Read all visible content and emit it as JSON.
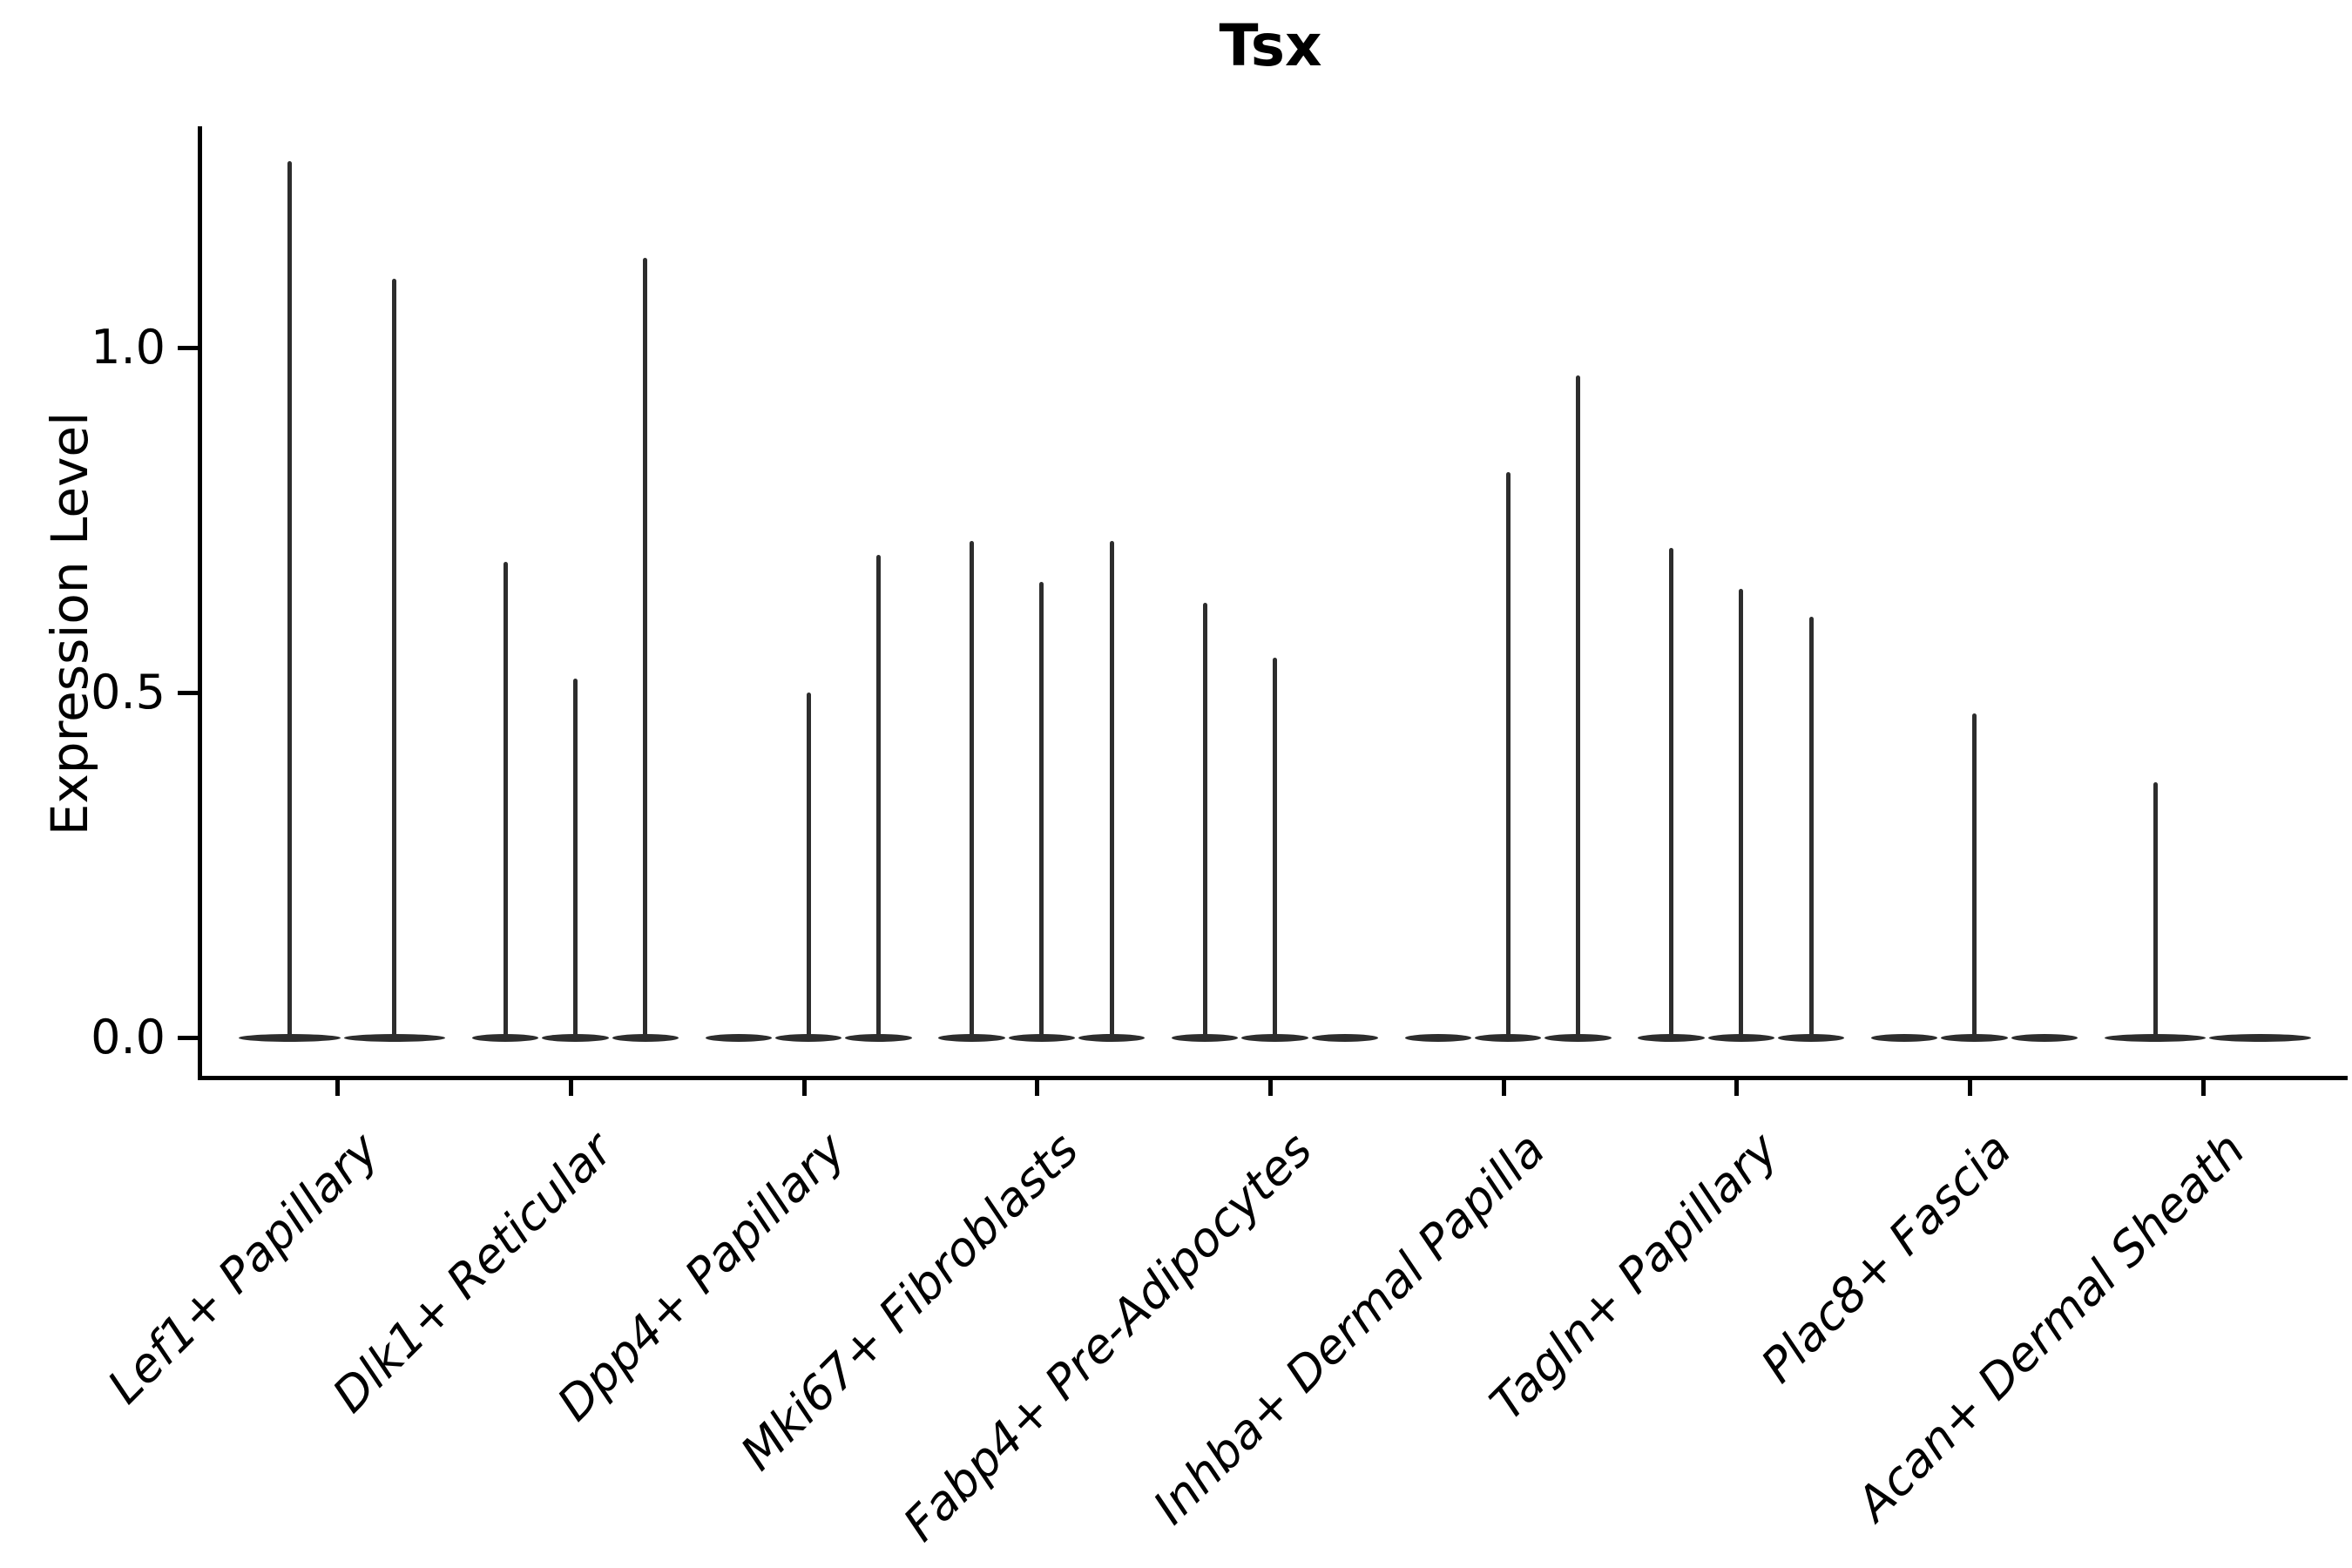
{
  "chart_data": {
    "type": "violin",
    "title": "Tsx",
    "xlabel": "",
    "ylabel": "Expression Level",
    "ylim": [
      0,
      1.32
    ],
    "yticks": [
      0.0,
      0.5,
      1.0
    ],
    "ytick_labels": [
      "0.0",
      "0.5",
      "1.0"
    ],
    "grid": "off",
    "legend": "none",
    "violin_color": "#2d2d2d",
    "axis_color": "#000000",
    "categories": [
      "Lef1+ Papillary",
      "Dlk1+ Reticular",
      "Dpp4+ Papillary",
      "Mki67+ Fibroblasts",
      "Fabp4+ Pre-Adipocytes",
      "Inhba+ Dermal Papilla",
      "Tagln+ Papillary",
      "Plac8+ Fascia",
      "Acan+ Dermal Sheath"
    ],
    "groups": [
      {
        "category": "Lef1+ Papillary",
        "violin_maxima": [
          1.27,
          1.1
        ]
      },
      {
        "category": "Dlk1+ Reticular",
        "violin_maxima": [
          0.69,
          0.52,
          1.13
        ]
      },
      {
        "category": "Dpp4+ Papillary",
        "violin_maxima": [
          0,
          0.5,
          0.7
        ]
      },
      {
        "category": "Mki67+ Fibroblasts",
        "violin_maxima": [
          0.72,
          0.66,
          0.72
        ]
      },
      {
        "category": "Fabp4+ Pre-Adipocytes",
        "violin_maxima": [
          0.63,
          0.55,
          0
        ]
      },
      {
        "category": "Inhba+ Dermal Papilla",
        "violin_maxima": [
          0,
          0.82,
          0.96
        ]
      },
      {
        "category": "Tagln+ Papillary",
        "violin_maxima": [
          0.71,
          0.65,
          0.61
        ]
      },
      {
        "category": "Plac8+ Fascia",
        "violin_maxima": [
          0,
          0.47,
          0
        ]
      },
      {
        "category": "Acan+ Dermal Sheath",
        "violin_maxima": [
          0.37,
          0
        ]
      }
    ],
    "note_all_violins_have_flat_base_at_zero": true
  }
}
